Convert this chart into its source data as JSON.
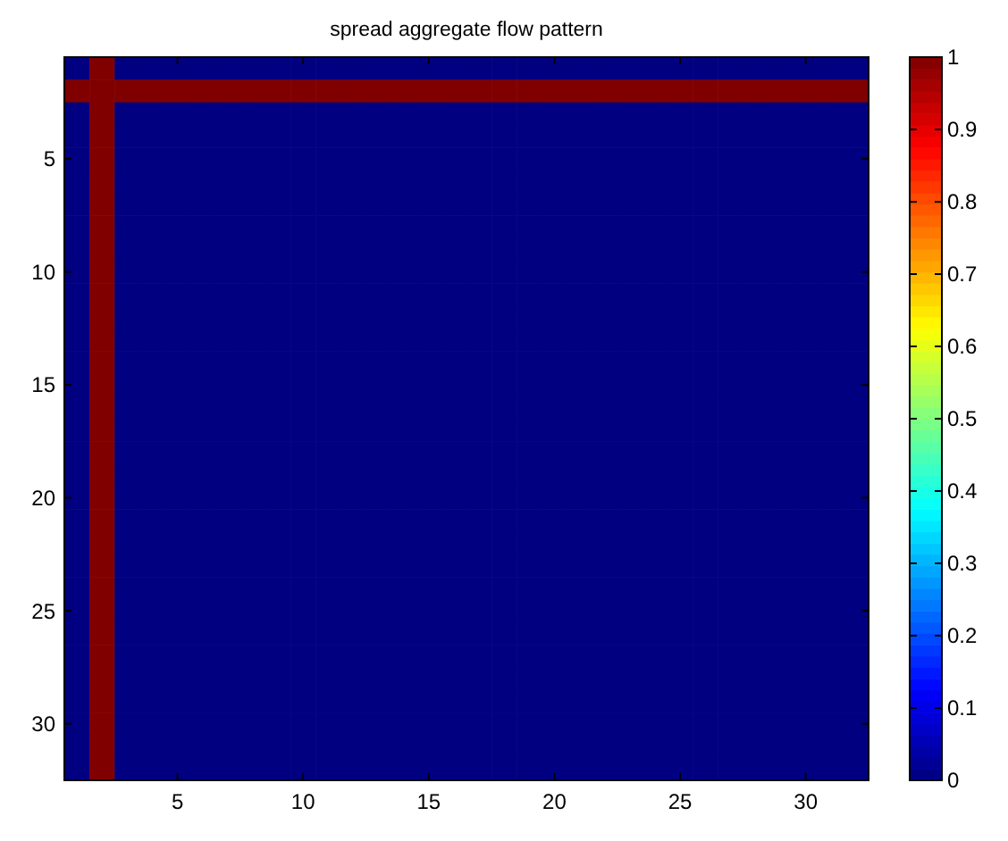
{
  "chart_data": {
    "type": "heatmap",
    "title": "spread aggregate flow pattern",
    "categories": [
      null,
      null,
      null,
      null,
      "5",
      null,
      null,
      null,
      null,
      "10",
      null,
      null,
      null,
      null,
      "15",
      null,
      null,
      null,
      null,
      "20",
      null,
      null,
      null,
      null,
      "25",
      null,
      null,
      null,
      null,
      "30",
      null,
      null
    ],
    "y_categories": [
      null,
      null,
      null,
      null,
      "5",
      null,
      null,
      null,
      null,
      "10",
      null,
      null,
      null,
      null,
      "15",
      null,
      null,
      null,
      null,
      "20",
      null,
      null,
      null,
      null,
      "25",
      null,
      null,
      null,
      null,
      "30",
      null,
      null
    ],
    "clim": [
      0,
      1
    ],
    "cticks": [
      0,
      0.1,
      0.2,
      0.3,
      0.4,
      0.5,
      0.6,
      0.7,
      0.8,
      0.9,
      1
    ],
    "cells": [
      [
        0,
        1,
        0,
        0,
        0,
        0,
        0,
        0,
        0,
        0,
        0,
        0,
        0,
        0,
        0,
        0,
        0,
        0,
        0,
        0,
        0,
        0,
        0,
        0,
        0,
        0,
        0,
        0,
        0,
        0,
        0,
        0
      ],
      [
        1,
        1,
        1,
        1,
        1,
        1,
        1,
        1,
        1,
        1,
        1,
        1,
        1,
        1,
        1,
        1,
        1,
        1,
        1,
        1,
        1,
        1,
        1,
        1,
        1,
        1,
        1,
        1,
        1,
        1,
        1,
        1
      ],
      [
        0,
        1,
        0,
        0,
        0,
        0,
        0,
        0,
        0,
        0,
        0,
        0,
        0,
        0,
        0,
        0,
        0,
        0,
        0,
        0,
        0,
        0,
        0,
        0,
        0,
        0,
        0,
        0,
        0,
        0,
        0,
        0
      ],
      [
        0,
        1,
        0,
        0,
        0,
        0,
        0,
        0,
        0,
        0,
        0,
        0,
        0,
        0,
        0,
        0,
        0,
        0,
        0,
        0,
        0,
        0,
        0,
        0,
        0,
        0,
        0,
        0,
        0,
        0,
        0,
        0
      ],
      [
        0,
        1,
        0,
        0,
        0,
        0,
        0,
        0,
        0,
        0,
        0,
        0,
        0,
        0,
        0,
        0,
        0,
        0,
        0,
        0,
        0,
        0,
        0,
        0,
        0,
        0,
        0,
        0,
        0,
        0,
        0,
        0
      ],
      [
        0,
        1,
        0,
        0,
        0,
        0,
        0,
        0,
        0,
        0,
        0,
        0,
        0,
        0,
        0,
        0,
        0,
        0,
        0,
        0,
        0,
        0,
        0,
        0,
        0,
        0,
        0,
        0,
        0,
        0,
        0,
        0
      ],
      [
        0,
        1,
        0,
        0,
        0,
        0,
        0,
        0,
        0,
        0,
        0,
        0,
        0,
        0,
        0,
        0,
        0,
        0,
        0,
        0,
        0,
        0,
        0,
        0,
        0,
        0,
        0,
        0,
        0,
        0,
        0,
        0
      ],
      [
        0,
        1,
        0,
        0,
        0,
        0,
        0,
        0,
        0,
        0,
        0,
        0,
        0,
        0,
        0,
        0,
        0,
        0,
        0,
        0,
        0,
        0,
        0,
        0,
        0,
        0,
        0,
        0,
        0,
        0,
        0,
        0
      ],
      [
        0,
        1,
        0,
        0,
        0,
        0,
        0,
        0,
        0,
        0,
        0,
        0,
        0,
        0,
        0,
        0,
        0,
        0,
        0,
        0,
        0,
        0,
        0,
        0,
        0,
        0,
        0,
        0,
        0,
        0,
        0,
        0
      ],
      [
        0,
        1,
        0,
        0,
        0,
        0,
        0,
        0,
        0,
        0,
        0,
        0,
        0,
        0,
        0,
        0,
        0,
        0,
        0,
        0,
        0,
        0,
        0,
        0,
        0,
        0,
        0,
        0,
        0,
        0,
        0,
        0
      ],
      [
        0,
        1,
        0,
        0,
        0,
        0,
        0,
        0,
        0,
        0,
        0,
        0,
        0,
        0,
        0,
        0,
        0,
        0,
        0,
        0,
        0,
        0,
        0,
        0,
        0,
        0,
        0,
        0,
        0,
        0,
        0,
        0
      ],
      [
        0,
        1,
        0,
        0,
        0,
        0,
        0,
        0,
        0,
        0,
        0,
        0,
        0,
        0,
        0,
        0,
        0,
        0,
        0,
        0,
        0,
        0,
        0,
        0,
        0,
        0,
        0,
        0,
        0,
        0,
        0,
        0
      ],
      [
        0,
        1,
        0,
        0,
        0,
        0,
        0,
        0,
        0,
        0,
        0,
        0,
        0,
        0,
        0,
        0,
        0,
        0,
        0,
        0,
        0,
        0,
        0,
        0,
        0,
        0,
        0,
        0,
        0,
        0,
        0,
        0
      ],
      [
        0,
        1,
        0,
        0,
        0,
        0,
        0,
        0,
        0,
        0,
        0,
        0,
        0,
        0,
        0,
        0,
        0,
        0,
        0,
        0,
        0,
        0,
        0,
        0,
        0,
        0,
        0,
        0,
        0,
        0,
        0,
        0
      ],
      [
        0,
        1,
        0,
        0,
        0,
        0,
        0,
        0,
        0,
        0,
        0,
        0,
        0,
        0,
        0,
        0,
        0,
        0,
        0,
        0,
        0,
        0,
        0,
        0,
        0,
        0,
        0,
        0,
        0,
        0,
        0,
        0
      ],
      [
        0,
        1,
        0,
        0,
        0,
        0,
        0,
        0,
        0,
        0,
        0,
        0,
        0,
        0,
        0,
        0,
        0,
        0,
        0,
        0,
        0,
        0,
        0,
        0,
        0,
        0,
        0,
        0,
        0,
        0,
        0,
        0
      ],
      [
        0,
        1,
        0,
        0,
        0,
        0,
        0,
        0,
        0,
        0,
        0,
        0,
        0,
        0,
        0,
        0,
        0,
        0,
        0,
        0,
        0,
        0,
        0,
        0,
        0,
        0,
        0,
        0,
        0,
        0,
        0,
        0
      ],
      [
        0,
        1,
        0,
        0,
        0,
        0,
        0,
        0,
        0,
        0,
        0,
        0,
        0,
        0,
        0,
        0,
        0,
        0,
        0,
        0,
        0,
        0,
        0,
        0,
        0,
        0,
        0,
        0,
        0,
        0,
        0,
        0
      ],
      [
        0,
        1,
        0,
        0,
        0,
        0,
        0,
        0,
        0,
        0,
        0,
        0,
        0,
        0,
        0,
        0,
        0,
        0,
        0,
        0,
        0,
        0,
        0,
        0,
        0,
        0,
        0,
        0,
        0,
        0,
        0,
        0
      ],
      [
        0,
        1,
        0,
        0,
        0,
        0,
        0,
        0,
        0,
        0,
        0,
        0,
        0,
        0,
        0,
        0,
        0,
        0,
        0,
        0,
        0,
        0,
        0,
        0,
        0,
        0,
        0,
        0,
        0,
        0,
        0,
        0
      ],
      [
        0,
        1,
        0,
        0,
        0,
        0,
        0,
        0,
        0,
        0,
        0,
        0,
        0,
        0,
        0,
        0,
        0,
        0,
        0,
        0,
        0,
        0,
        0,
        0,
        0,
        0,
        0,
        0,
        0,
        0,
        0,
        0
      ],
      [
        0,
        1,
        0,
        0,
        0,
        0,
        0,
        0,
        0,
        0,
        0,
        0,
        0,
        0,
        0,
        0,
        0,
        0,
        0,
        0,
        0,
        0,
        0,
        0,
        0,
        0,
        0,
        0,
        0,
        0,
        0,
        0
      ],
      [
        0,
        1,
        0,
        0,
        0,
        0,
        0,
        0,
        0,
        0,
        0,
        0,
        0,
        0,
        0,
        0,
        0,
        0,
        0,
        0,
        0,
        0,
        0,
        0,
        0,
        0,
        0,
        0,
        0,
        0,
        0,
        0
      ],
      [
        0,
        1,
        0,
        0,
        0,
        0,
        0,
        0,
        0,
        0,
        0,
        0,
        0,
        0,
        0,
        0,
        0,
        0,
        0,
        0,
        0,
        0,
        0,
        0,
        0,
        0,
        0,
        0,
        0,
        0,
        0,
        0
      ],
      [
        0,
        1,
        0,
        0,
        0,
        0,
        0,
        0,
        0,
        0,
        0,
        0,
        0,
        0,
        0,
        0,
        0,
        0,
        0,
        0,
        0,
        0,
        0,
        0,
        0,
        0,
        0,
        0,
        0,
        0,
        0,
        0
      ],
      [
        0,
        1,
        0,
        0,
        0,
        0,
        0,
        0,
        0,
        0,
        0,
        0,
        0,
        0,
        0,
        0,
        0,
        0,
        0,
        0,
        0,
        0,
        0,
        0,
        0,
        0,
        0,
        0,
        0,
        0,
        0,
        0
      ],
      [
        0,
        1,
        0,
        0,
        0,
        0,
        0,
        0,
        0,
        0,
        0,
        0,
        0,
        0,
        0,
        0,
        0,
        0,
        0,
        0,
        0,
        0,
        0,
        0,
        0,
        0,
        0,
        0,
        0,
        0,
        0,
        0
      ],
      [
        0,
        1,
        0,
        0,
        0,
        0,
        0,
        0,
        0,
        0,
        0,
        0,
        0,
        0,
        0,
        0,
        0,
        0,
        0,
        0,
        0,
        0,
        0,
        0,
        0,
        0,
        0,
        0,
        0,
        0,
        0,
        0
      ],
      [
        0,
        1,
        0,
        0,
        0,
        0,
        0,
        0,
        0,
        0,
        0,
        0,
        0,
        0,
        0,
        0,
        0,
        0,
        0,
        0,
        0,
        0,
        0,
        0,
        0,
        0,
        0,
        0,
        0,
        0,
        0,
        0
      ],
      [
        0,
        1,
        0,
        0,
        0,
        0,
        0,
        0,
        0,
        0,
        0,
        0,
        0,
        0,
        0,
        0,
        0,
        0,
        0,
        0,
        0,
        0,
        0,
        0,
        0,
        0,
        0,
        0,
        0,
        0,
        0,
        0
      ],
      [
        0,
        1,
        0,
        0,
        0,
        0,
        0,
        0,
        0,
        0,
        0,
        0,
        0,
        0,
        0,
        0,
        0,
        0,
        0,
        0,
        0,
        0,
        0,
        0,
        0,
        0,
        0,
        0,
        0,
        0,
        0,
        0
      ],
      [
        0,
        1,
        0,
        0,
        0,
        0,
        0,
        0,
        0,
        0,
        0,
        0,
        0,
        0,
        0,
        0,
        0,
        0,
        0,
        0,
        0,
        0,
        0,
        0,
        0,
        0,
        0,
        0,
        0,
        0,
        0,
        0
      ]
    ]
  }
}
